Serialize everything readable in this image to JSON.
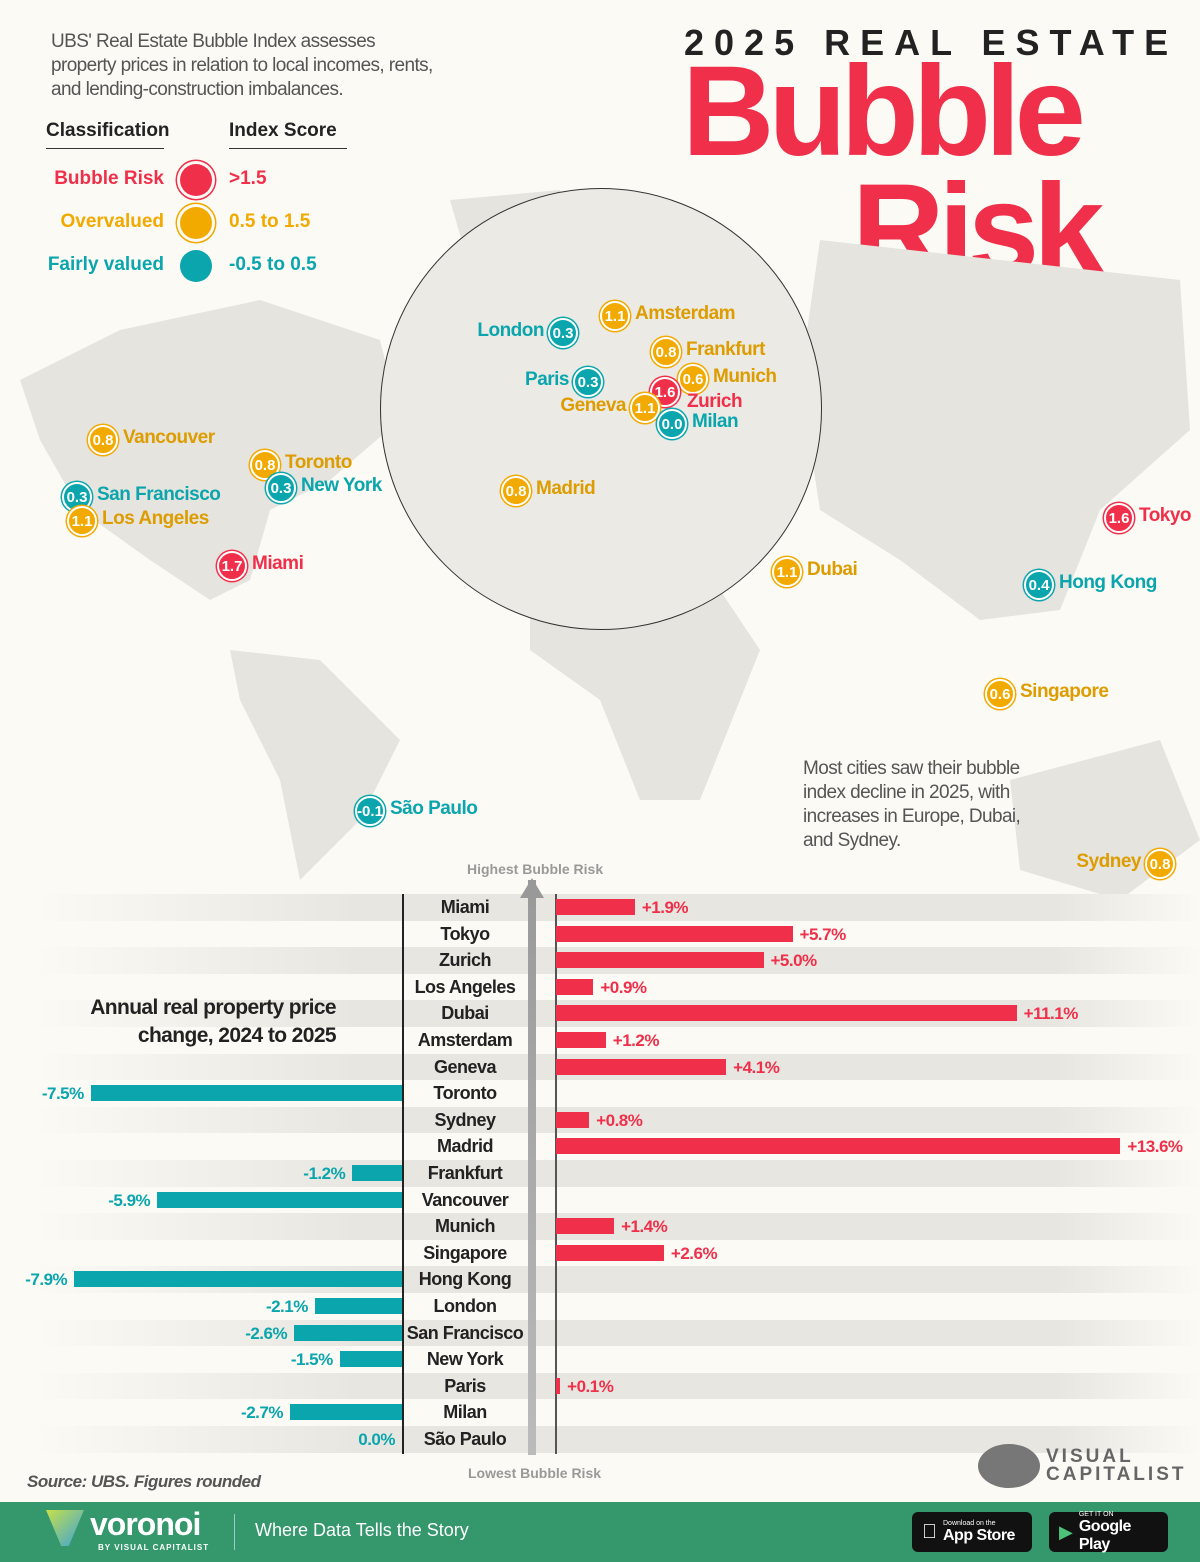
{
  "intro": "UBS' Real Estate Bubble Index assesses property prices in relation to local incomes, rents, and lending-construction imbalances.",
  "title": {
    "line1": "2025 REAL ESTATE",
    "line2": "Bubble",
    "line3": "Risk"
  },
  "legend": {
    "col1": "Classification",
    "col2": "Index Score",
    "items": [
      {
        "label": "Bubble Risk",
        "range": ">1.5",
        "color": "#f0304a"
      },
      {
        "label": "Overvalued",
        "range": "0.5 to 1.5",
        "color": "#f2a900"
      },
      {
        "label": "Fairly valued",
        "range": "-0.5 to 0.5",
        "color": "#0aa5ad"
      }
    ]
  },
  "colors": {
    "bubble": "#f0304a",
    "overvalued": "#f2a900",
    "overvalued_text": "#dd9c00",
    "fair": "#0aa5ad",
    "negative_bar": "#0aa5ad",
    "positive_bar": "#f0304a"
  },
  "map_cities": [
    {
      "city": "Amsterdam",
      "score": "1.1",
      "class": "overvalued"
    },
    {
      "city": "London",
      "score": "0.3",
      "class": "fair"
    },
    {
      "city": "Frankfurt",
      "score": "0.8",
      "class": "overvalued"
    },
    {
      "city": "Paris",
      "score": "0.3",
      "class": "fair"
    },
    {
      "city": "Munich",
      "score": "0.6",
      "class": "overvalued"
    },
    {
      "city": "Zurich",
      "score": "1.6",
      "class": "bubble"
    },
    {
      "city": "Geneva",
      "score": "1.1",
      "class": "overvalued"
    },
    {
      "city": "Milan",
      "score": "0.0",
      "class": "fair"
    },
    {
      "city": "Madrid",
      "score": "0.8",
      "class": "overvalued"
    },
    {
      "city": "Vancouver",
      "score": "0.8",
      "class": "overvalued"
    },
    {
      "city": "Toronto",
      "score": "0.8",
      "class": "overvalued"
    },
    {
      "city": "New York",
      "score": "0.3",
      "class": "fair"
    },
    {
      "city": "San Francisco",
      "score": "0.3",
      "class": "fair"
    },
    {
      "city": "Los Angeles",
      "score": "1.1",
      "class": "overvalued"
    },
    {
      "city": "Miami",
      "score": "1.7",
      "class": "bubble"
    },
    {
      "city": "Tokyo",
      "score": "1.6",
      "class": "bubble"
    },
    {
      "city": "Dubai",
      "score": "1.1",
      "class": "overvalued"
    },
    {
      "city": "Hong Kong",
      "score": "0.4",
      "class": "fair"
    },
    {
      "city": "Singapore",
      "score": "0.6",
      "class": "overvalued"
    },
    {
      "city": "São Paulo",
      "score": "-0.1",
      "class": "fair"
    },
    {
      "city": "Sydney",
      "score": "0.8",
      "class": "overvalued"
    }
  ],
  "note": "Most cities saw their bubble index decline in 2025, with increases in Europe, Dubai, and Sydney.",
  "chart_data": {
    "type": "bar",
    "orientation": "horizontal",
    "title": "Annual real property price change, 2024 to 2025",
    "axis_top_label": "Highest Bubble Risk",
    "axis_bottom_label": "Lowest Bubble Risk",
    "unit": "%",
    "categories": [
      "Miami",
      "Tokyo",
      "Zurich",
      "Los Angeles",
      "Dubai",
      "Amsterdam",
      "Geneva",
      "Toronto",
      "Sydney",
      "Madrid",
      "Frankfurt",
      "Vancouver",
      "Munich",
      "Singapore",
      "Hong Kong",
      "London",
      "San Francisco",
      "New York",
      "Paris",
      "Milan",
      "São Paulo"
    ],
    "values": [
      1.9,
      5.7,
      5.0,
      0.9,
      11.1,
      1.2,
      4.1,
      -7.5,
      0.8,
      13.6,
      -1.2,
      -5.9,
      1.4,
      2.6,
      -7.9,
      -2.1,
      -2.6,
      -1.5,
      0.1,
      -2.7,
      0.0
    ],
    "labels": [
      "+1.9%",
      "+5.7%",
      "+5.0%",
      "+0.9%",
      "+11.1%",
      "+1.2%",
      "+4.1%",
      "-7.5%",
      "+0.8%",
      "+13.6%",
      "-1.2%",
      "-5.9%",
      "+1.4%",
      "+2.6%",
      "-7.9%",
      "-2.1%",
      "-2.6%",
      "-1.5%",
      "+0.1%",
      "-2.7%",
      "0.0%"
    ]
  },
  "source": "Source: UBS. Figures rounded",
  "brand": {
    "vc": "VISUAL CAPITALIST",
    "voronoi": "voronoi",
    "voronoi_by": "BY VISUAL CAPITALIST",
    "tagline": "Where Data Tells the Story",
    "appstore_small": "Download on the",
    "appstore": "App Store",
    "gplay_small": "GET IT ON",
    "gplay": "Google Play"
  }
}
